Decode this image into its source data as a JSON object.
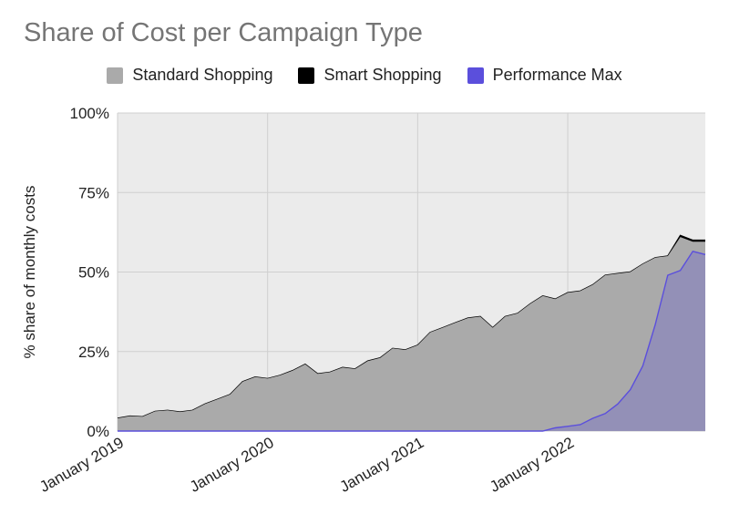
{
  "chart_data": {
    "type": "area",
    "title": "Share of Cost per Campaign Type",
    "ylabel": "% share of monthly costs",
    "xlabel": "",
    "ylim": [
      0,
      100
    ],
    "y_ticks": [
      "0%",
      "25%",
      "50%",
      "75%",
      "100%"
    ],
    "y_tick_values": [
      0,
      25,
      50,
      75,
      100
    ],
    "x_start": "2019-01",
    "x_end": "2022-12",
    "x_ticks": [
      "January 2019",
      "January 2020",
      "January 2021",
      "January 2022"
    ],
    "x_tick_months": [
      "2019-01",
      "2020-01",
      "2021-01",
      "2022-01"
    ],
    "grid": true,
    "legend_position": "top",
    "stacked": false,
    "months": [
      "2019-01",
      "2019-02",
      "2019-03",
      "2019-04",
      "2019-05",
      "2019-06",
      "2019-07",
      "2019-08",
      "2019-09",
      "2019-10",
      "2019-11",
      "2019-12",
      "2020-01",
      "2020-02",
      "2020-03",
      "2020-04",
      "2020-05",
      "2020-06",
      "2020-07",
      "2020-08",
      "2020-09",
      "2020-10",
      "2020-11",
      "2020-12",
      "2021-01",
      "2021-02",
      "2021-03",
      "2021-04",
      "2021-05",
      "2021-06",
      "2021-07",
      "2021-08",
      "2021-09",
      "2021-10",
      "2021-11",
      "2021-12",
      "2022-01",
      "2022-02",
      "2022-03",
      "2022-04",
      "2022-05",
      "2022-06",
      "2022-07",
      "2022-08",
      "2022-09",
      "2022-10",
      "2022-11",
      "2022-12"
    ],
    "series": [
      {
        "name": "Standard Shopping",
        "color": "#aaaaaa",
        "values": [
          4.0,
          4.7,
          4.5,
          6.2,
          6.5,
          6.0,
          6.5,
          8.5,
          10.0,
          11.5,
          15.5,
          17.0,
          16.5,
          17.5,
          19.0,
          21.0,
          18.0,
          18.5,
          20.0,
          19.5,
          22.0,
          23.0,
          26.0,
          25.5,
          27.0,
          31.0,
          32.5,
          34.0,
          35.5,
          36.0,
          32.5,
          36.0,
          37.0,
          40.0,
          42.5,
          41.5,
          43.5,
          44.0,
          46.0,
          49.0,
          49.5,
          50.0,
          52.5,
          54.5,
          55.0,
          61.0,
          59.5,
          59.5
        ]
      },
      {
        "name": "Smart Shopping",
        "color": "#000000",
        "values": [
          4.0,
          4.7,
          4.5,
          6.2,
          6.5,
          6.0,
          6.5,
          8.5,
          10.0,
          11.5,
          15.5,
          17.0,
          16.5,
          17.5,
          19.0,
          21.0,
          18.0,
          18.5,
          20.0,
          19.5,
          22.0,
          23.0,
          26.0,
          25.5,
          27.0,
          31.0,
          32.5,
          34.0,
          35.5,
          36.0,
          32.5,
          36.0,
          37.0,
          40.0,
          42.5,
          41.5,
          43.5,
          44.0,
          46.0,
          49.0,
          49.5,
          50.0,
          52.5,
          54.5,
          55.0,
          61.5,
          60.0,
          60.0
        ]
      },
      {
        "name": "Performance Max",
        "color": "#5b4fdc",
        "values": [
          0,
          0,
          0,
          0,
          0,
          0,
          0,
          0,
          0,
          0,
          0,
          0,
          0,
          0,
          0,
          0,
          0,
          0,
          0,
          0,
          0,
          0,
          0,
          0,
          0,
          0,
          0,
          0,
          0,
          0,
          0,
          0,
          0,
          0,
          0,
          1.0,
          1.5,
          2.0,
          4.0,
          5.5,
          8.5,
          13.0,
          20.5,
          33.5,
          49.0,
          50.5,
          56.5,
          55.5
        ]
      }
    ]
  }
}
